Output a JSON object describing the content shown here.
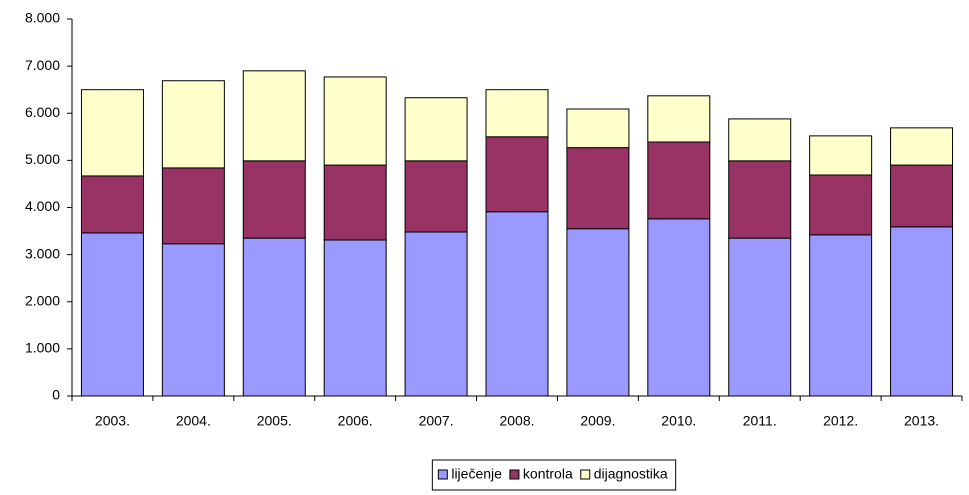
{
  "chart_data": {
    "type": "stacked_bar",
    "categories": [
      "2003.",
      "2004.",
      "2005.",
      "2006.",
      "2007.",
      "2008.",
      "2009.",
      "2010.",
      "2011.",
      "2012.",
      "2013."
    ],
    "series": [
      {
        "name": "liječenje",
        "color": "#9999ff",
        "values": [
          3460,
          3230,
          3350,
          3310,
          3480,
          3910,
          3550,
          3760,
          3350,
          3420,
          3590
        ]
      },
      {
        "name": "kontrola",
        "color": "#993366",
        "values": [
          1210,
          1610,
          1640,
          1590,
          1510,
          1590,
          1720,
          1630,
          1640,
          1270,
          1310
        ]
      },
      {
        "name": "dijagnostika",
        "color": "#ffffcc",
        "values": [
          1830,
          1850,
          1910,
          1870,
          1340,
          1000,
          820,
          980,
          890,
          830,
          790
        ]
      }
    ],
    "ylim": [
      0,
      8000
    ],
    "yticks": [
      0,
      {
        "value": 1000,
        "label": "1.000"
      },
      {
        "value": 2000,
        "label": "2.000"
      },
      {
        "value": 3000,
        "label": "3.000"
      },
      {
        "value": 4000,
        "label": "4.000"
      },
      {
        "value": 5000,
        "label": "5.000"
      },
      {
        "value": 6000,
        "label": "6.000"
      },
      {
        "value": 7000,
        "label": "7.000"
      },
      {
        "value": 8000,
        "label": "8.000"
      }
    ],
    "grid": false,
    "legend": "bottom"
  }
}
